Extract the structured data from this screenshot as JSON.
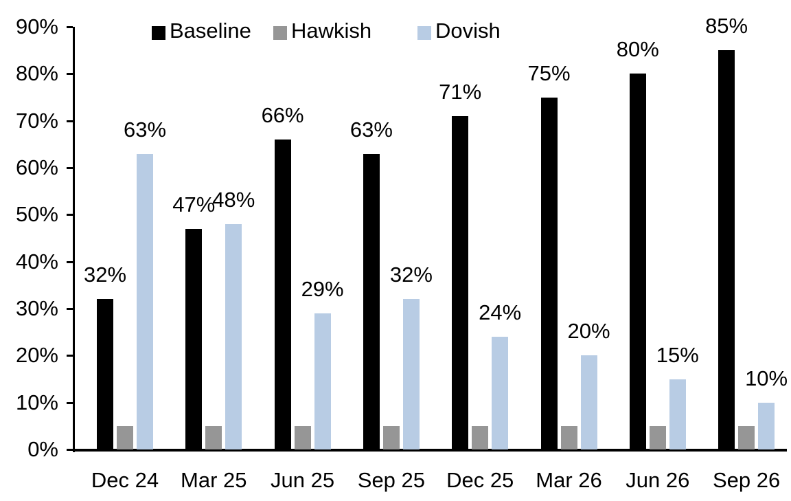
{
  "chart_data": {
    "type": "bar",
    "title": "",
    "categories": [
      "Dec 24",
      "Mar 25",
      "Jun 25",
      "Sep 25",
      "Dec 25",
      "Mar 26",
      "Jun 26",
      "Sep 26"
    ],
    "series": [
      {
        "name": "Baseline",
        "color": "#000000",
        "values": [
          32,
          47,
          66,
          63,
          71,
          75,
          80,
          85
        ],
        "labels": [
          "32%",
          "47%",
          "66%",
          "63%",
          "71%",
          "75%",
          "80%",
          "85%"
        ]
      },
      {
        "name": "Hawkish",
        "color": "#969696",
        "values": [
          5,
          5,
          5,
          5,
          5,
          5,
          5,
          5
        ],
        "labels": null
      },
      {
        "name": "Dovish",
        "color": "#B8CCE4",
        "values": [
          63,
          48,
          29,
          32,
          24,
          20,
          15,
          10
        ],
        "labels": [
          "63%",
          "48%",
          "29%",
          "32%",
          "24%",
          "20%",
          "15%",
          "10%"
        ]
      }
    ],
    "ylim": [
      0,
      90
    ],
    "ytick_step": 10,
    "ytick_labels": [
      "0%",
      "10%",
      "20%",
      "30%",
      "40%",
      "50%",
      "60%",
      "70%",
      "80%",
      "90%"
    ],
    "xlabel": "",
    "ylabel": "",
    "legend_position": "top",
    "grid": false,
    "axis_color": "#000000",
    "background_color": "#FFFFFF"
  }
}
